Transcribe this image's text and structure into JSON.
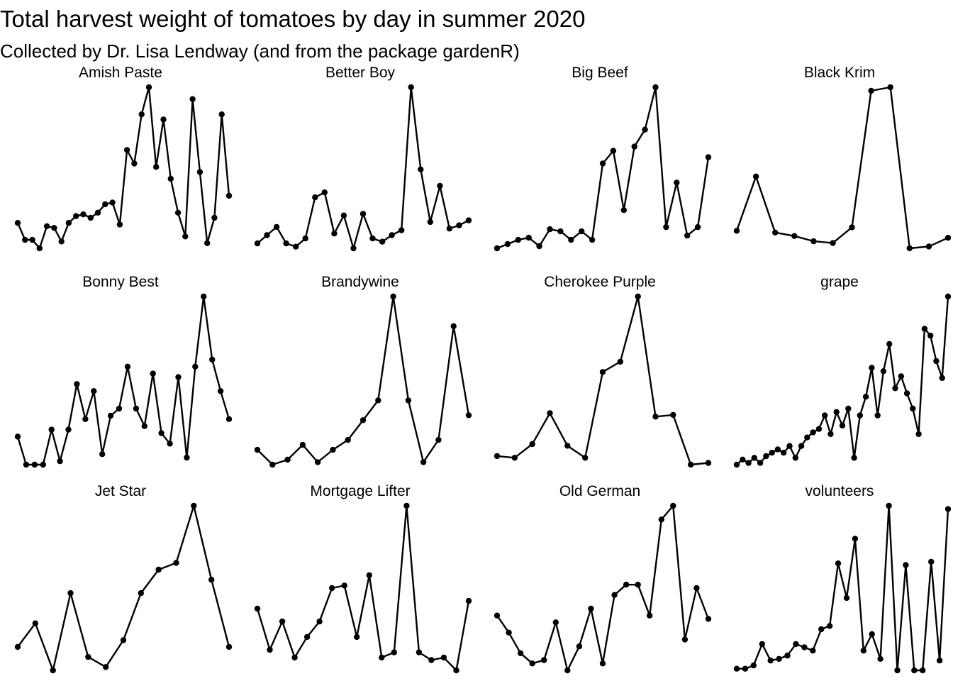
{
  "title": "Total harvest weight of tomatoes by day in summer 2020",
  "subtitle": "Collected by Dr. Lisa Lendway (and from the package gardenR)",
  "chart_data": {
    "type": "line",
    "facets": "free scales, 4 columns x 3 rows, axes hidden",
    "x": "harvest day (unlabeled)",
    "y": "total harvest weight (unlabeled)",
    "panels": [
      {
        "name": "Amish Paste",
        "values": [
          [
            1,
            0.2
          ],
          [
            2,
            0.1
          ],
          [
            3,
            0.1
          ],
          [
            4,
            0.05
          ],
          [
            5,
            0.18
          ],
          [
            6,
            0.17
          ],
          [
            7,
            0.09
          ],
          [
            8,
            0.2
          ],
          [
            9,
            0.24
          ],
          [
            10,
            0.25
          ],
          [
            11,
            0.23
          ],
          [
            12,
            0.26
          ],
          [
            13,
            0.31
          ],
          [
            14,
            0.32
          ],
          [
            15,
            0.19
          ],
          [
            16,
            0.63
          ],
          [
            17,
            0.55
          ],
          [
            18,
            0.84
          ],
          [
            19,
            1.0
          ],
          [
            20,
            0.53
          ],
          [
            21,
            0.81
          ],
          [
            22,
            0.46
          ],
          [
            23,
            0.26
          ],
          [
            24,
            0.12
          ],
          [
            25,
            0.93
          ],
          [
            26,
            0.5
          ],
          [
            27,
            0.08
          ],
          [
            28,
            0.23
          ],
          [
            29,
            0.84
          ],
          [
            30,
            0.36
          ]
        ]
      },
      {
        "name": "Better Boy",
        "values": [
          [
            1,
            0.05
          ],
          [
            2,
            0.1
          ],
          [
            3,
            0.15
          ],
          [
            4,
            0.05
          ],
          [
            5,
            0.03
          ],
          [
            6,
            0.08
          ],
          [
            7,
            0.33
          ],
          [
            8,
            0.36
          ],
          [
            9,
            0.11
          ],
          [
            10,
            0.22
          ],
          [
            11,
            0.02
          ],
          [
            12,
            0.23
          ],
          [
            13,
            0.08
          ],
          [
            14,
            0.06
          ],
          [
            15,
            0.1
          ],
          [
            16,
            0.13
          ],
          [
            17,
            1.0
          ],
          [
            18,
            0.5
          ],
          [
            19,
            0.18
          ],
          [
            20,
            0.4
          ],
          [
            21,
            0.14
          ],
          [
            22,
            0.16
          ],
          [
            23,
            0.19
          ]
        ]
      },
      {
        "name": "Big Beef",
        "values": [
          [
            1,
            0.02
          ],
          [
            2,
            0.04
          ],
          [
            3,
            0.06
          ],
          [
            4,
            0.07
          ],
          [
            5,
            0.03
          ],
          [
            6,
            0.11
          ],
          [
            7,
            0.1
          ],
          [
            8,
            0.06
          ],
          [
            9,
            0.1
          ],
          [
            10,
            0.06
          ],
          [
            11,
            0.42
          ],
          [
            12,
            0.48
          ],
          [
            13,
            0.2
          ],
          [
            14,
            0.5
          ],
          [
            15,
            0.58
          ],
          [
            16,
            0.78
          ],
          [
            17,
            0.12
          ],
          [
            18,
            0.33
          ],
          [
            19,
            0.08
          ],
          [
            20,
            0.12
          ],
          [
            21,
            0.45
          ]
        ]
      },
      {
        "name": "Black Krim",
        "values": [
          [
            1,
            0.15
          ],
          [
            2,
            0.46
          ],
          [
            3,
            0.14
          ],
          [
            4,
            0.12
          ],
          [
            5,
            0.09
          ],
          [
            6,
            0.08
          ],
          [
            7,
            0.17
          ],
          [
            8,
            0.95
          ],
          [
            9,
            0.97
          ],
          [
            10,
            0.05
          ],
          [
            11,
            0.06
          ],
          [
            12,
            0.11
          ]
        ]
      },
      {
        "name": "Bonny Best",
        "values": [
          [
            1,
            0.1
          ],
          [
            2,
            0.02
          ],
          [
            3,
            0.02
          ],
          [
            4,
            0.02
          ],
          [
            5,
            0.12
          ],
          [
            6,
            0.03
          ],
          [
            7,
            0.12
          ],
          [
            8,
            0.25
          ],
          [
            9,
            0.15
          ],
          [
            10,
            0.23
          ],
          [
            11,
            0.05
          ],
          [
            12,
            0.16
          ],
          [
            13,
            0.18
          ],
          [
            14,
            0.3
          ],
          [
            15,
            0.18
          ],
          [
            16,
            0.13
          ],
          [
            17,
            0.28
          ],
          [
            18,
            0.11
          ],
          [
            19,
            0.08
          ],
          [
            20,
            0.27
          ],
          [
            21,
            0.04
          ],
          [
            22,
            0.3
          ],
          [
            23,
            0.5
          ],
          [
            24,
            0.32
          ],
          [
            25,
            0.23
          ],
          [
            26,
            0.15
          ]
        ]
      },
      {
        "name": "Brandywine",
        "values": [
          [
            1,
            0.1
          ],
          [
            2,
            0.04
          ],
          [
            3,
            0.06
          ],
          [
            4,
            0.12
          ],
          [
            5,
            0.05
          ],
          [
            6,
            0.1
          ],
          [
            7,
            0.14
          ],
          [
            8,
            0.22
          ],
          [
            9,
            0.3
          ],
          [
            10,
            0.72
          ],
          [
            11,
            0.3
          ],
          [
            12,
            0.05
          ],
          [
            13,
            0.14
          ],
          [
            14,
            0.6
          ],
          [
            15,
            0.24
          ]
        ]
      },
      {
        "name": "Cherokee Purple",
        "values": [
          [
            1,
            0.07
          ],
          [
            2,
            0.06
          ],
          [
            3,
            0.14
          ],
          [
            4,
            0.32
          ],
          [
            5,
            0.13
          ],
          [
            6,
            0.06
          ],
          [
            7,
            0.56
          ],
          [
            8,
            0.62
          ],
          [
            9,
            1.0
          ],
          [
            10,
            0.3
          ],
          [
            11,
            0.31
          ],
          [
            12,
            0.02
          ],
          [
            13,
            0.03
          ]
        ]
      },
      {
        "name": "grape",
        "values": [
          [
            1,
            0.01
          ],
          [
            2,
            0.04
          ],
          [
            3,
            0.02
          ],
          [
            4,
            0.05
          ],
          [
            5,
            0.02
          ],
          [
            6,
            0.06
          ],
          [
            7,
            0.08
          ],
          [
            8,
            0.1
          ],
          [
            9,
            0.08
          ],
          [
            10,
            0.12
          ],
          [
            11,
            0.05
          ],
          [
            12,
            0.12
          ],
          [
            13,
            0.17
          ],
          [
            14,
            0.2
          ],
          [
            15,
            0.22
          ],
          [
            16,
            0.3
          ],
          [
            17,
            0.19
          ],
          [
            18,
            0.32
          ],
          [
            19,
            0.24
          ],
          [
            20,
            0.34
          ],
          [
            21,
            0.05
          ],
          [
            22,
            0.3
          ],
          [
            23,
            0.41
          ],
          [
            24,
            0.58
          ],
          [
            25,
            0.3
          ],
          [
            26,
            0.56
          ],
          [
            27,
            0.72
          ],
          [
            28,
            0.46
          ],
          [
            29,
            0.53
          ],
          [
            30,
            0.43
          ],
          [
            31,
            0.34
          ],
          [
            32,
            0.19
          ],
          [
            33,
            0.81
          ],
          [
            34,
            0.77
          ],
          [
            35,
            0.62
          ],
          [
            36,
            0.52
          ],
          [
            37,
            1.0
          ]
        ]
      },
      {
        "name": "Jet Star",
        "values": [
          [
            1,
            0.08
          ],
          [
            2,
            0.15
          ],
          [
            3,
            0.01
          ],
          [
            4,
            0.24
          ],
          [
            5,
            0.05
          ],
          [
            6,
            0.02
          ],
          [
            7,
            0.1
          ],
          [
            8,
            0.24
          ],
          [
            9,
            0.31
          ],
          [
            10,
            0.33
          ],
          [
            11,
            0.5
          ],
          [
            12,
            0.28
          ],
          [
            13,
            0.08
          ]
        ]
      },
      {
        "name": "Mortgage Lifter",
        "values": [
          [
            1,
            0.27
          ],
          [
            2,
            0.11
          ],
          [
            3,
            0.22
          ],
          [
            4,
            0.08
          ],
          [
            5,
            0.16
          ],
          [
            6,
            0.22
          ],
          [
            7,
            0.35
          ],
          [
            8,
            0.36
          ],
          [
            9,
            0.16
          ],
          [
            10,
            0.4
          ],
          [
            11,
            0.08
          ],
          [
            12,
            0.1
          ],
          [
            13,
            0.67
          ],
          [
            14,
            0.1
          ],
          [
            15,
            0.07
          ],
          [
            16,
            0.08
          ],
          [
            17,
            0.03
          ],
          [
            18,
            0.3
          ]
        ]
      },
      {
        "name": "Old German",
        "values": [
          [
            1,
            0.16
          ],
          [
            2,
            0.11
          ],
          [
            3,
            0.05
          ],
          [
            4,
            0.02
          ],
          [
            5,
            0.03
          ],
          [
            6,
            0.14
          ],
          [
            7,
            0.0
          ],
          [
            8,
            0.07
          ],
          [
            9,
            0.18
          ],
          [
            10,
            0.02
          ],
          [
            11,
            0.22
          ],
          [
            12,
            0.25
          ],
          [
            13,
            0.25
          ],
          [
            14,
            0.16
          ],
          [
            15,
            0.44
          ],
          [
            16,
            0.48
          ],
          [
            17,
            0.09
          ],
          [
            18,
            0.24
          ],
          [
            19,
            0.15
          ]
        ]
      },
      {
        "name": "volunteers",
        "values": [
          [
            1,
            0.01
          ],
          [
            2,
            0.01
          ],
          [
            3,
            0.03
          ],
          [
            4,
            0.16
          ],
          [
            5,
            0.06
          ],
          [
            6,
            0.07
          ],
          [
            7,
            0.09
          ],
          [
            8,
            0.16
          ],
          [
            9,
            0.14
          ],
          [
            10,
            0.12
          ],
          [
            11,
            0.25
          ],
          [
            12,
            0.27
          ],
          [
            13,
            0.65
          ],
          [
            14,
            0.44
          ],
          [
            15,
            0.8
          ],
          [
            16,
            0.12
          ],
          [
            17,
            0.22
          ],
          [
            18,
            0.07
          ],
          [
            19,
            1.0
          ],
          [
            20,
            0.0
          ],
          [
            21,
            0.64
          ],
          [
            22,
            0.0
          ],
          [
            23,
            0.0
          ],
          [
            24,
            0.66
          ],
          [
            25,
            0.06
          ],
          [
            26,
            0.98
          ]
        ]
      }
    ]
  },
  "style": {
    "line_color": "#000000",
    "point_color": "#000000",
    "background": "#ffffff"
  }
}
